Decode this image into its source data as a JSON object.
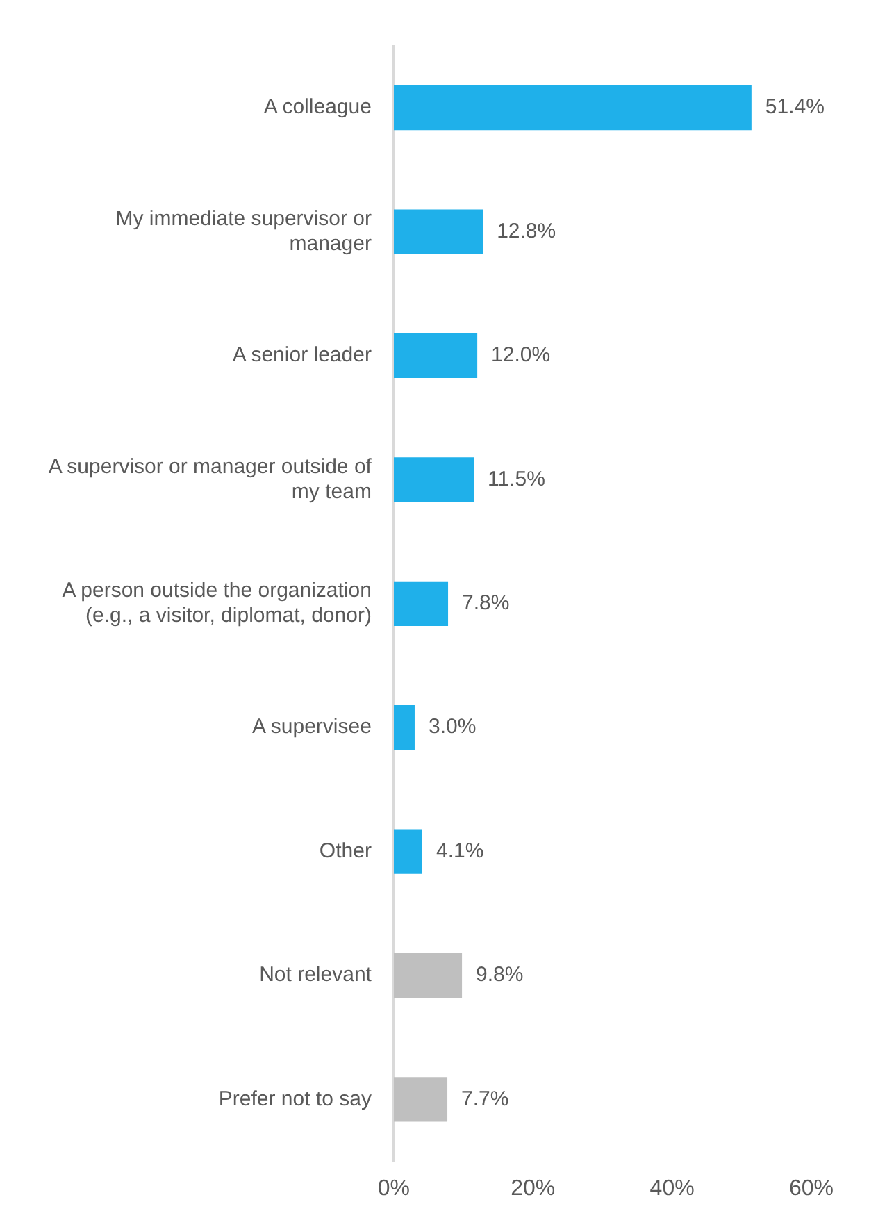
{
  "chart_data": {
    "type": "bar",
    "orientation": "horizontal",
    "categories": [
      "A colleague",
      "My immediate supervisor or manager",
      "A senior leader",
      "A supervisor or manager outside of my team",
      "A person outside the organization (e.g., a visitor, diplomat, donor)",
      "A supervisee",
      "Other",
      "Not relevant",
      "Prefer not to say"
    ],
    "values": [
      51.4,
      12.8,
      12.0,
      11.5,
      7.8,
      3.0,
      4.1,
      9.8,
      7.7
    ],
    "colors": [
      "#1fb0ea",
      "#1fb0ea",
      "#1fb0ea",
      "#1fb0ea",
      "#1fb0ea",
      "#1fb0ea",
      "#1fb0ea",
      "#bfbfbf",
      "#bfbfbf"
    ],
    "value_labels": [
      "51.4%",
      "12.8%",
      "12.0%",
      "11.5%",
      "7.8%",
      "3.0%",
      "4.1%",
      "9.8%",
      "7.7%"
    ],
    "xlim": [
      0,
      60
    ],
    "xticks": [
      {
        "value": 0,
        "label": "0%"
      },
      {
        "value": 20,
        "label": "20%"
      },
      {
        "value": 40,
        "label": "40%"
      },
      {
        "value": 60,
        "label": "60%"
      }
    ]
  }
}
